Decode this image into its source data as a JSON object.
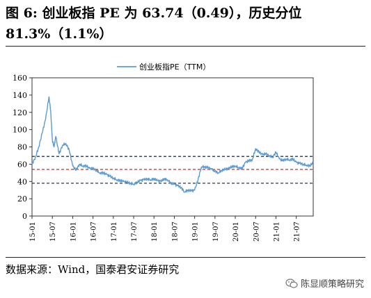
{
  "figure": {
    "title": "图 6: 创业板指 PE 为 63.74（0.49），历史分位 81.3%（1.1%）",
    "source": "数据来源：Wind，国泰君安证券研究",
    "watermark": "陈显顺策略研究"
  },
  "colors": {
    "series": "#5b9bd5",
    "median_line": "#d62728",
    "band_lines": "#1f3864"
  },
  "chart_data": {
    "type": "line",
    "legend": "创业板指PE（TTM）",
    "legend_position": "top-center",
    "ylim": [
      0,
      160
    ],
    "yticks": [
      0,
      20,
      40,
      60,
      80,
      100,
      120,
      140,
      160
    ],
    "xlim": [
      "2015-01",
      "2021-12"
    ],
    "xticks": [
      "15-01",
      "15-07",
      "16-01",
      "16-07",
      "17-01",
      "17-07",
      "18-01",
      "18-07",
      "19-01",
      "19-07",
      "20-01",
      "20-07",
      "21-01",
      "21-07"
    ],
    "grid": false,
    "reference_lines": [
      {
        "value": 69,
        "style": "dashed",
        "color": "#1f3864"
      },
      {
        "value": 54,
        "style": "dashed",
        "color": "#d62728"
      },
      {
        "value": 38,
        "style": "dashed",
        "color": "#1f3864"
      }
    ],
    "series": [
      {
        "name": "创业板指PE（TTM）",
        "x": [
          "2015-01",
          "2015-02",
          "2015-03",
          "2015-04",
          "2015-05",
          "2015-06",
          "2015-06",
          "2015-07",
          "2015-07",
          "2015-08",
          "2015-09",
          "2015-10",
          "2015-11",
          "2015-12",
          "2016-01",
          "2016-02",
          "2016-03",
          "2016-04",
          "2016-05",
          "2016-06",
          "2016-07",
          "2016-08",
          "2016-09",
          "2016-10",
          "2016-11",
          "2016-12",
          "2017-01",
          "2017-02",
          "2017-03",
          "2017-04",
          "2017-05",
          "2017-06",
          "2017-07",
          "2017-08",
          "2017-09",
          "2017-10",
          "2017-11",
          "2017-12",
          "2018-01",
          "2018-02",
          "2018-03",
          "2018-04",
          "2018-05",
          "2018-06",
          "2018-07",
          "2018-08",
          "2018-09",
          "2018-10",
          "2018-11",
          "2018-12",
          "2019-01",
          "2019-02",
          "2019-03",
          "2019-04",
          "2019-05",
          "2019-06",
          "2019-07",
          "2019-08",
          "2019-09",
          "2019-10",
          "2019-11",
          "2019-12",
          "2020-01",
          "2020-02",
          "2020-03",
          "2020-04",
          "2020-05",
          "2020-06",
          "2020-07",
          "2020-08",
          "2020-09",
          "2020-10",
          "2020-11",
          "2020-12",
          "2021-01",
          "2021-02",
          "2021-03",
          "2021-04",
          "2021-05",
          "2021-06",
          "2021-07",
          "2021-08",
          "2021-09",
          "2021-10",
          "2021-11",
          "2021-12"
        ],
        "y": [
          60,
          68,
          80,
          96,
          112,
          138,
          122,
          88,
          80,
          92,
          72,
          82,
          84,
          76,
          58,
          53,
          60,
          58,
          58,
          55,
          55,
          53,
          50,
          50,
          48,
          46,
          44,
          42,
          41,
          40,
          39,
          38,
          37,
          39,
          41,
          42,
          43,
          42,
          43,
          41,
          40,
          43,
          42,
          38,
          37,
          35,
          33,
          28,
          30,
          29,
          30,
          42,
          57,
          57,
          56,
          54,
          52,
          50,
          53,
          54,
          55,
          57,
          58,
          56,
          55,
          62,
          64,
          65,
          78,
          74,
          71,
          72,
          70,
          68,
          74,
          66,
          64,
          66,
          65,
          66,
          62,
          61,
          60,
          59,
          58,
          62
        ]
      }
    ]
  }
}
